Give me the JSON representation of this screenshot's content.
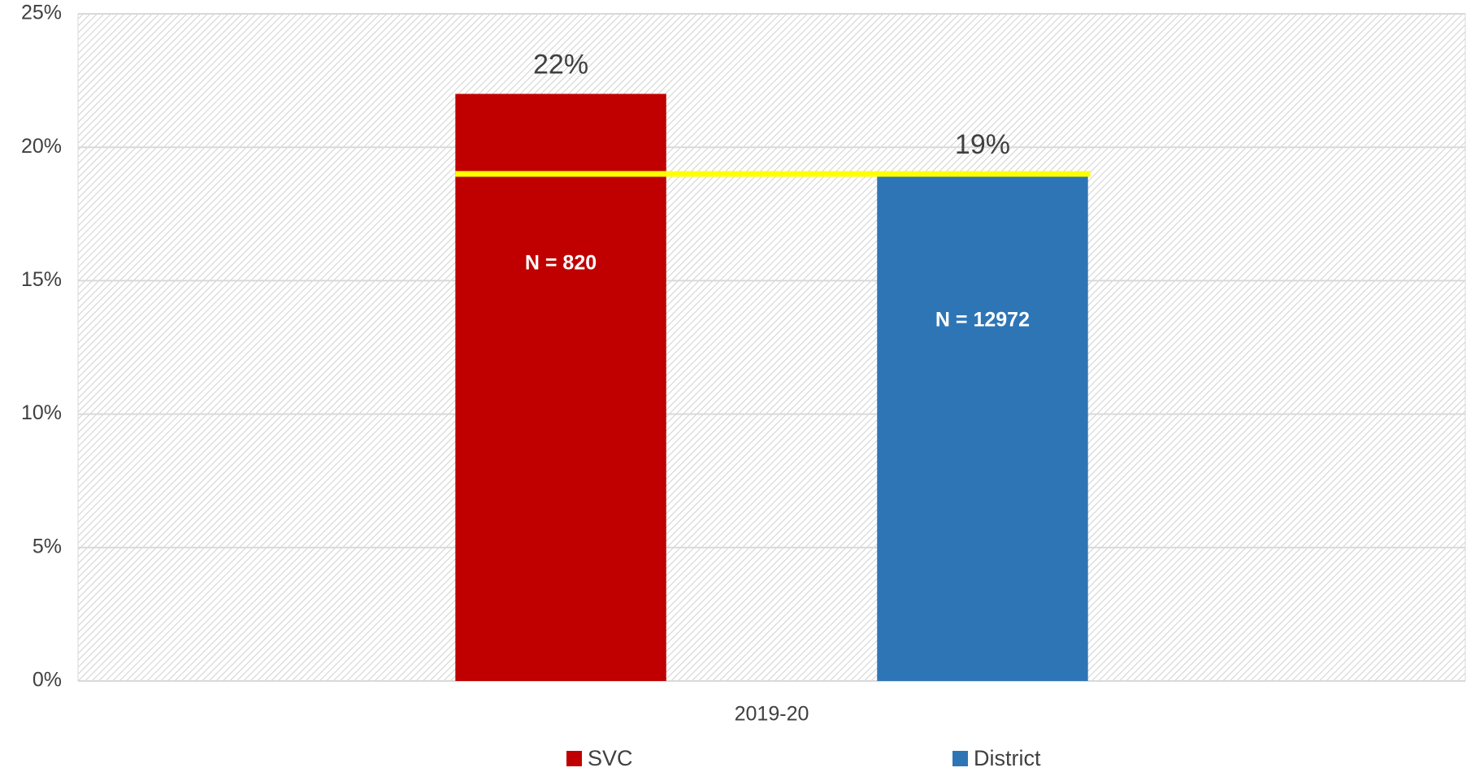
{
  "chart_data": {
    "type": "bar",
    "categories": [
      "2019-20"
    ],
    "series": [
      {
        "name": "SVC",
        "color": "#c00000",
        "values": [
          22
        ],
        "value_labels": [
          "22%"
        ],
        "inner_label": "N = 820"
      },
      {
        "name": "District",
        "color": "#2e75b6",
        "values": [
          19
        ],
        "value_labels": [
          "19%"
        ],
        "inner_label": "N = 12972"
      }
    ],
    "reference_line": {
      "value": 19,
      "color": "#ffff00"
    },
    "ylim": [
      0,
      25
    ],
    "yticks": [
      {
        "value": 0,
        "label": "0%"
      },
      {
        "value": 5,
        "label": "5%"
      },
      {
        "value": 10,
        "label": "10%"
      },
      {
        "value": 15,
        "label": "15%"
      },
      {
        "value": 20,
        "label": "20%"
      },
      {
        "value": 25,
        "label": "25%"
      }
    ],
    "grid": true,
    "legend": "bottom"
  }
}
